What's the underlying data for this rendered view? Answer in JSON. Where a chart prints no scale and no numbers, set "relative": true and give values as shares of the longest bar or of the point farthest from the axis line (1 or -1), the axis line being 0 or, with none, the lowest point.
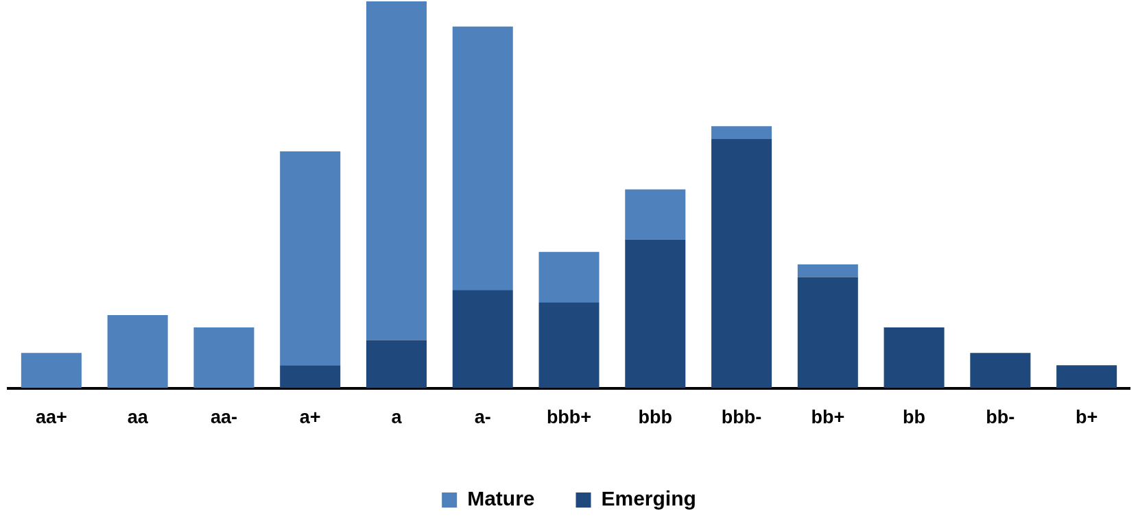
{
  "chart_data": {
    "type": "bar",
    "stacked": true,
    "relative": true,
    "legend": "bottom",
    "grid": false,
    "categories": [
      "aa+",
      "aa",
      "aa-",
      "a+",
      "a",
      "a-",
      "bbb+",
      "bbb",
      "bbb-",
      "bb+",
      "bb",
      "bb-",
      "b+"
    ],
    "series": [
      {
        "name": "Emerging",
        "color": "#1f497d",
        "values": [
          0,
          0,
          0,
          0.059,
          0.124,
          0.254,
          0.222,
          0.384,
          0.644,
          0.287,
          0.157,
          0.091,
          0.059
        ]
      },
      {
        "name": "Mature",
        "color": "#4f81bd",
        "values": [
          0.091,
          0.189,
          0.157,
          0.553,
          0.876,
          0.681,
          0.13,
          0.13,
          0.033,
          0.033,
          0,
          0,
          0
        ]
      }
    ]
  }
}
